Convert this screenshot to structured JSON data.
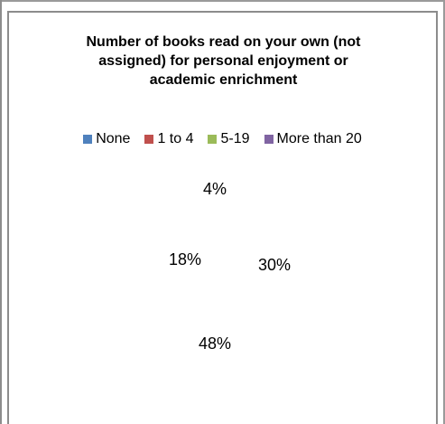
{
  "chart_data": {
    "type": "pie",
    "title": "Number of books read on your own (not assigned) for personal enjoyment or academic enrichment",
    "categories": [
      "None",
      "1 to 4",
      "5-19",
      "More than 20"
    ],
    "values": [
      4,
      48,
      30,
      18
    ],
    "data_labels": [
      "4%",
      "48%",
      "30%",
      "18%"
    ],
    "colors": [
      "#4f81bd",
      "#c0504d",
      "#9bbb59",
      "#8064a2"
    ],
    "legend": "top"
  },
  "title_lines": [
    "Number of books read on your own (not",
    "assigned) for personal enjoyment or",
    "academic enrichment"
  ]
}
